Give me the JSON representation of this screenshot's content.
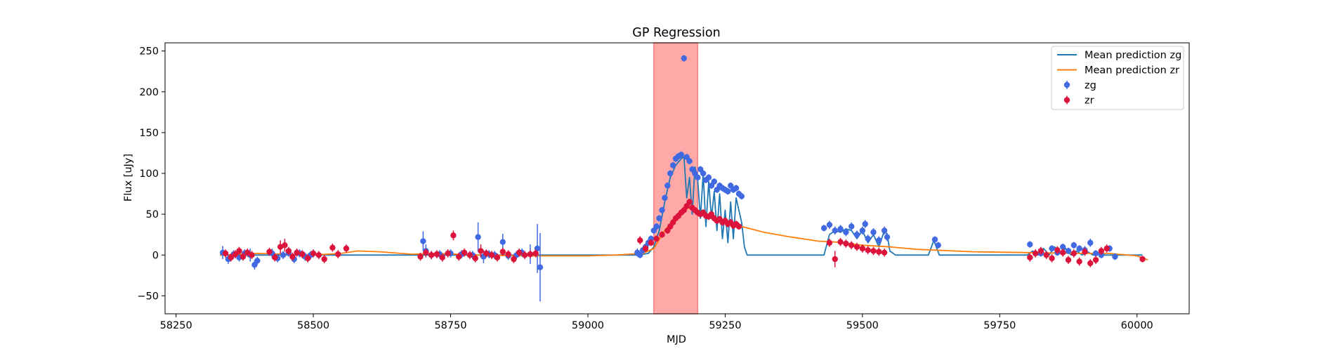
{
  "chart_data": {
    "type": "scatter",
    "title": "GP Regression",
    "xlabel": "MJD",
    "ylabel": "Flux [uJy]",
    "xlim": [
      58230,
      60095
    ],
    "ylim": [
      -72,
      260
    ],
    "xticks": [
      58250,
      58500,
      58750,
      59000,
      59250,
      59500,
      59750,
      60000
    ],
    "yticks": [
      -50,
      0,
      50,
      100,
      150,
      200,
      250
    ],
    "legend_position": "upper right",
    "shaded_region": {
      "x0": 59120,
      "x1": 59200,
      "color": "#ff7f7f"
    },
    "colors": {
      "zg_line": "#1f77b4",
      "zr_line": "#ff7f0e",
      "zg_points": "#4169e1",
      "zr_points": "#dc143c"
    },
    "legend": [
      {
        "label": "Mean prediction zg",
        "kind": "line",
        "color": "#1f77b4"
      },
      {
        "label": "Mean prediction zr",
        "kind": "line",
        "color": "#ff7f0e"
      },
      {
        "label": "zg",
        "kind": "errorbar",
        "color": "#4169e1"
      },
      {
        "label": "zr",
        "kind": "errorbar",
        "color": "#dc143c"
      }
    ],
    "series": [
      {
        "name": "Mean prediction zg",
        "kind": "line",
        "x": [
          58330,
          59090,
          59110,
          59120,
          59130,
          59140,
          59150,
          59160,
          59170,
          59175,
          59180,
          59185,
          59190,
          59195,
          59200,
          59205,
          59210,
          59215,
          59220,
          59225,
          59230,
          59235,
          59240,
          59245,
          59250,
          59255,
          59260,
          59265,
          59270,
          59275,
          59280,
          59285,
          59290,
          59300,
          59430,
          59440,
          59450,
          59460,
          59470,
          59480,
          59490,
          59500,
          59510,
          59520,
          59530,
          59540,
          59545,
          59550,
          59560,
          59620,
          59630,
          59640,
          59650,
          59800,
          59810,
          59820,
          59830,
          59840,
          59850,
          59860,
          59870,
          59880,
          59890,
          59900,
          59910,
          59920,
          59930,
          59940,
          59950,
          59960,
          60010
        ],
        "y": [
          0,
          0,
          2,
          10,
          30,
          65,
          95,
          110,
          118,
          120,
          70,
          95,
          50,
          108,
          92,
          45,
          100,
          35,
          90,
          45,
          78,
          30,
          75,
          20,
          55,
          15,
          65,
          20,
          70,
          55,
          40,
          10,
          0,
          0,
          0,
          25,
          30,
          28,
          32,
          30,
          20,
          30,
          15,
          25,
          10,
          30,
          25,
          5,
          0,
          0,
          18,
          0,
          0,
          0,
          5,
          0,
          8,
          0,
          10,
          3,
          8,
          0,
          5,
          0,
          4,
          0,
          3,
          0,
          0,
          0,
          0
        ]
      },
      {
        "name": "Mean prediction zr",
        "kind": "line",
        "x": [
          58330,
          58400,
          58450,
          58500,
          58550,
          58580,
          58620,
          58680,
          58720,
          58800,
          58900,
          59000,
          59050,
          59100,
          59120,
          59140,
          59160,
          59180,
          59200,
          59215,
          59230,
          59250,
          59280,
          59320,
          59370,
          59420,
          59450,
          59500,
          59550,
          59600,
          59700,
          59800,
          59900,
          59950,
          60000,
          60020
        ],
        "y": [
          0,
          2,
          1,
          0,
          2,
          5,
          4,
          1,
          2,
          0,
          -1,
          -1,
          0,
          2,
          8,
          30,
          48,
          58,
          55,
          50,
          45,
          42,
          35,
          28,
          22,
          17,
          16,
          12,
          10,
          7,
          4,
          3,
          2,
          2,
          -1,
          -6
        ]
      },
      {
        "name": "zg",
        "kind": "errorbar",
        "x": [
          58335,
          58345,
          58355,
          58365,
          58375,
          58385,
          58393,
          58398,
          58425,
          58435,
          58445,
          58455,
          58465,
          58475,
          58485,
          58495,
          58700,
          58705,
          58715,
          58730,
          58750,
          58770,
          58790,
          58800,
          58810,
          58820,
          58830,
          58845,
          58855,
          58870,
          58880,
          58895,
          58908,
          58913,
          59090,
          59095,
          59100,
          59105,
          59110,
          59115,
          59120,
          59125,
          59130,
          59135,
          59140,
          59145,
          59150,
          59155,
          59160,
          59165,
          59170,
          59175,
          59180,
          59185,
          59190,
          59195,
          59200,
          59205,
          59210,
          59215,
          59220,
          59225,
          59230,
          59235,
          59240,
          59245,
          59250,
          59255,
          59260,
          59265,
          59270,
          59275,
          59280,
          59430,
          59440,
          59450,
          59460,
          59470,
          59480,
          59490,
          59500,
          59505,
          59510,
          59520,
          59530,
          59540,
          59545,
          59632,
          59638,
          59805,
          59825,
          59845,
          59855,
          59865,
          59875,
          59885,
          59895,
          59905,
          59915,
          59925,
          59935,
          59950,
          59960
        ],
        "y": [
          3,
          -5,
          1,
          -3,
          2,
          0,
          -12,
          -7,
          2,
          -4,
          0,
          3,
          -5,
          2,
          -2,
          0,
          17,
          5,
          0,
          1,
          2,
          1,
          0,
          22,
          -2,
          1,
          0,
          16,
          -1,
          0,
          3,
          1,
          8,
          -15,
          3,
          0,
          6,
          10,
          15,
          20,
          30,
          35,
          45,
          55,
          70,
          85,
          100,
          110,
          118,
          121,
          123,
          241,
          120,
          115,
          105,
          100,
          95,
          105,
          100,
          92,
          95,
          85,
          90,
          80,
          85,
          82,
          80,
          78,
          85,
          80,
          82,
          75,
          72,
          33,
          37,
          30,
          32,
          28,
          35,
          25,
          30,
          38,
          20,
          28,
          18,
          30,
          22,
          19,
          12,
          13,
          2,
          8,
          3,
          10,
          5,
          12,
          8,
          6,
          15,
          2,
          0,
          8,
          -2
        ],
        "err": [
          8,
          6,
          5,
          5,
          5,
          8,
          6,
          5,
          6,
          5,
          5,
          5,
          5,
          5,
          5,
          5,
          12,
          8,
          5,
          5,
          5,
          5,
          5,
          18,
          8,
          5,
          5,
          10,
          5,
          5,
          5,
          12,
          30,
          42,
          5,
          4,
          4,
          4,
          4,
          4,
          4,
          4,
          4,
          4,
          4,
          4,
          4,
          4,
          4,
          4,
          4,
          4,
          4,
          4,
          4,
          4,
          4,
          4,
          4,
          4,
          4,
          4,
          4,
          4,
          4,
          4,
          4,
          4,
          4,
          4,
          4,
          4,
          4,
          4,
          5,
          5,
          5,
          5,
          5,
          5,
          5,
          5,
          5,
          5,
          5,
          5,
          5,
          4,
          4,
          4,
          4,
          4,
          4,
          4,
          4,
          4,
          4,
          5,
          5,
          4,
          4,
          4,
          4
        ]
      },
      {
        "name": "zr",
        "kind": "errorbar",
        "x": [
          58340,
          58350,
          58358,
          58365,
          58372,
          58380,
          58388,
          58420,
          58430,
          58440,
          58448,
          58455,
          58462,
          58470,
          58480,
          58490,
          58500,
          58510,
          58520,
          58535,
          58545,
          58560,
          58695,
          58705,
          58715,
          58725,
          58735,
          58745,
          58755,
          58765,
          58775,
          58785,
          58795,
          58805,
          58815,
          58825,
          58835,
          58845,
          58855,
          58865,
          58875,
          58885,
          58895,
          58905,
          59095,
          59105,
          59115,
          59125,
          59135,
          59145,
          59150,
          59155,
          59160,
          59165,
          59170,
          59175,
          59180,
          59185,
          59190,
          59195,
          59200,
          59205,
          59210,
          59215,
          59220,
          59225,
          59230,
          59235,
          59240,
          59245,
          59250,
          59255,
          59260,
          59265,
          59270,
          59275,
          59440,
          59450,
          59460,
          59470,
          59480,
          59490,
          59500,
          59510,
          59520,
          59530,
          59540,
          59805,
          59815,
          59825,
          59835,
          59845,
          59855,
          59865,
          59875,
          59885,
          59895,
          59905,
          59915,
          59925,
          59935,
          59945,
          60010
        ],
        "y": [
          2,
          -3,
          1,
          5,
          -2,
          3,
          0,
          4,
          -3,
          10,
          12,
          5,
          -2,
          3,
          1,
          -4,
          2,
          0,
          -5,
          9,
          1,
          8,
          -2,
          3,
          0,
          1,
          -3,
          2,
          24,
          -2,
          3,
          0,
          -4,
          5,
          2,
          0,
          -3,
          4,
          1,
          -5,
          3,
          0,
          1,
          2,
          18,
          8,
          15,
          20,
          25,
          30,
          35,
          40,
          45,
          48,
          52,
          55,
          60,
          65,
          58,
          55,
          52,
          50,
          52,
          48,
          47,
          50,
          45,
          42,
          44,
          40,
          42,
          38,
          40,
          36,
          38,
          35,
          15,
          -5,
          16,
          14,
          12,
          10,
          8,
          6,
          5,
          4,
          3,
          -3,
          2,
          5,
          0,
          -4,
          6,
          3,
          -6,
          2,
          -8,
          4,
          -10,
          -6,
          5,
          8,
          -5
        ],
        "err": [
          5,
          5,
          5,
          5,
          5,
          5,
          5,
          5,
          5,
          8,
          8,
          5,
          5,
          5,
          5,
          5,
          5,
          5,
          5,
          5,
          5,
          5,
          5,
          5,
          5,
          5,
          5,
          5,
          6,
          5,
          5,
          5,
          5,
          8,
          5,
          5,
          5,
          5,
          5,
          5,
          5,
          5,
          5,
          5,
          5,
          4,
          4,
          4,
          4,
          4,
          4,
          4,
          4,
          4,
          4,
          4,
          4,
          4,
          4,
          4,
          4,
          4,
          4,
          4,
          4,
          4,
          4,
          4,
          4,
          4,
          4,
          4,
          4,
          4,
          4,
          4,
          5,
          10,
          5,
          5,
          5,
          5,
          5,
          5,
          5,
          5,
          5,
          5,
          5,
          5,
          5,
          5,
          5,
          5,
          5,
          5,
          5,
          5,
          5,
          5,
          5,
          5,
          4
        ]
      }
    ]
  }
}
